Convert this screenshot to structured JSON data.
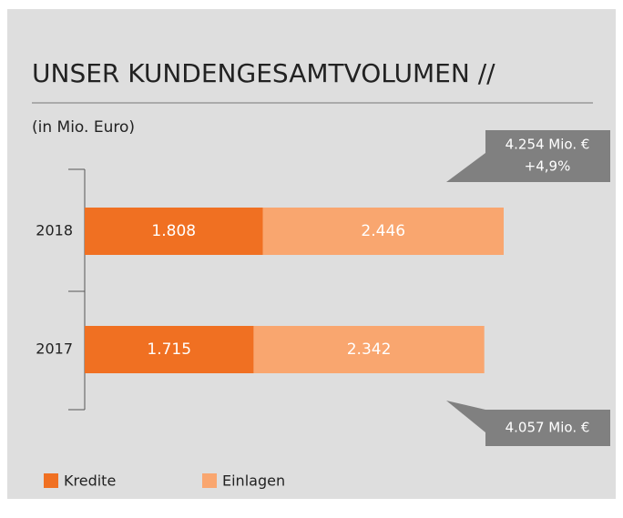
{
  "chart_data": {
    "type": "stacked_barh",
    "title": "UNSER KUNDENGESAMTVOLUMEN //",
    "subtitle": "(in Mio. Euro)",
    "categories": [
      "2018",
      "2017"
    ],
    "series": [
      {
        "name": "Kredite",
        "color": "#f07022",
        "values": [
          1808,
          1715
        ],
        "value_labels": [
          "1.808",
          "1.715"
        ]
      },
      {
        "name": "Einlagen",
        "color": "#f9a66f",
        "values": [
          2446,
          2342
        ],
        "value_labels": [
          "2.446",
          "2.342"
        ]
      }
    ],
    "annotations": [
      "4.254 Mio. €",
      "+4,9%",
      "4.057 Mio. €"
    ],
    "legend": "bottom-left"
  }
}
